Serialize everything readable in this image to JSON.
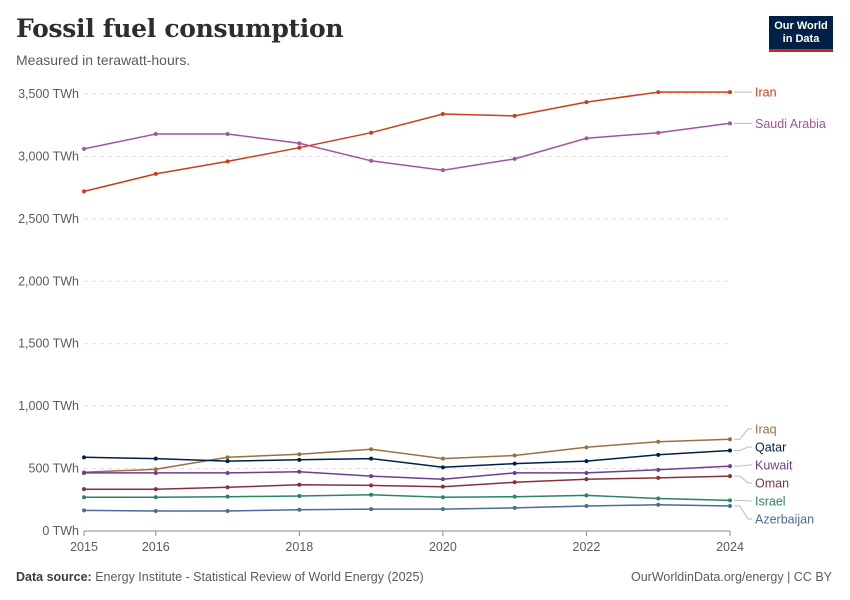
{
  "header": {
    "title": "Fossil fuel consumption",
    "subtitle": "Measured in terawatt-hours."
  },
  "logo": {
    "line1": "Our World",
    "line2": "in Data"
  },
  "footer": {
    "source_label": "Data source:",
    "source_text": "Energy Institute - Statistical Review of World Energy (2025)",
    "right_text": "OurWorldinData.org/energy | CC BY"
  },
  "chart_data": {
    "type": "line",
    "title": "Fossil fuel consumption",
    "subtitle": "Measured in terawatt-hours.",
    "x": [
      2015,
      2016,
      2017,
      2018,
      2019,
      2020,
      2021,
      2022,
      2023,
      2024
    ],
    "x_ticks": [
      "2015",
      "2016",
      "2018",
      "2020",
      "2022",
      "2024"
    ],
    "y_ticks": [
      "0 TWh",
      "500 TWh",
      "1,000 TWh",
      "1,500 TWh",
      "2,000 TWh",
      "2,500 TWh",
      "3,000 TWh",
      "3,500 TWh"
    ],
    "y_tick_values": [
      0,
      500,
      1000,
      1500,
      2000,
      2500,
      3000,
      3500
    ],
    "ylim": [
      0,
      3500
    ],
    "xlim": [
      2015,
      2024
    ],
    "grid": "horizontal dashed",
    "legend": "right, labels at line ends",
    "series": [
      {
        "name": "Iran",
        "color": "#c6401b",
        "values": [
          2720,
          2860,
          2960,
          3070,
          3190,
          3340,
          3325,
          3435,
          3515,
          3515
        ]
      },
      {
        "name": "Saudi Arabia",
        "color": "#a2559c",
        "values": [
          3060,
          3180,
          3180,
          3105,
          2965,
          2890,
          2980,
          3145,
          3190,
          3265
        ]
      },
      {
        "name": "Iraq",
        "color": "#9a7041",
        "values": [
          470,
          495,
          590,
          615,
          655,
          580,
          605,
          670,
          715,
          735
        ]
      },
      {
        "name": "Qatar",
        "color": "#002147",
        "values": [
          590,
          580,
          560,
          570,
          580,
          510,
          540,
          560,
          610,
          645
        ]
      },
      {
        "name": "Kuwait",
        "color": "#6d3e91",
        "values": [
          465,
          465,
          465,
          475,
          440,
          415,
          465,
          465,
          490,
          520
        ]
      },
      {
        "name": "Oman",
        "color": "#883039",
        "values": [
          335,
          335,
          350,
          370,
          365,
          355,
          390,
          415,
          425,
          440
        ]
      },
      {
        "name": "Israel",
        "color": "#2c8465",
        "values": [
          270,
          270,
          275,
          280,
          290,
          270,
          275,
          285,
          260,
          245
        ]
      },
      {
        "name": "Azerbaijan",
        "color": "#4c6a9c",
        "values": [
          165,
          160,
          160,
          170,
          175,
          175,
          185,
          200,
          210,
          200
        ]
      }
    ]
  }
}
